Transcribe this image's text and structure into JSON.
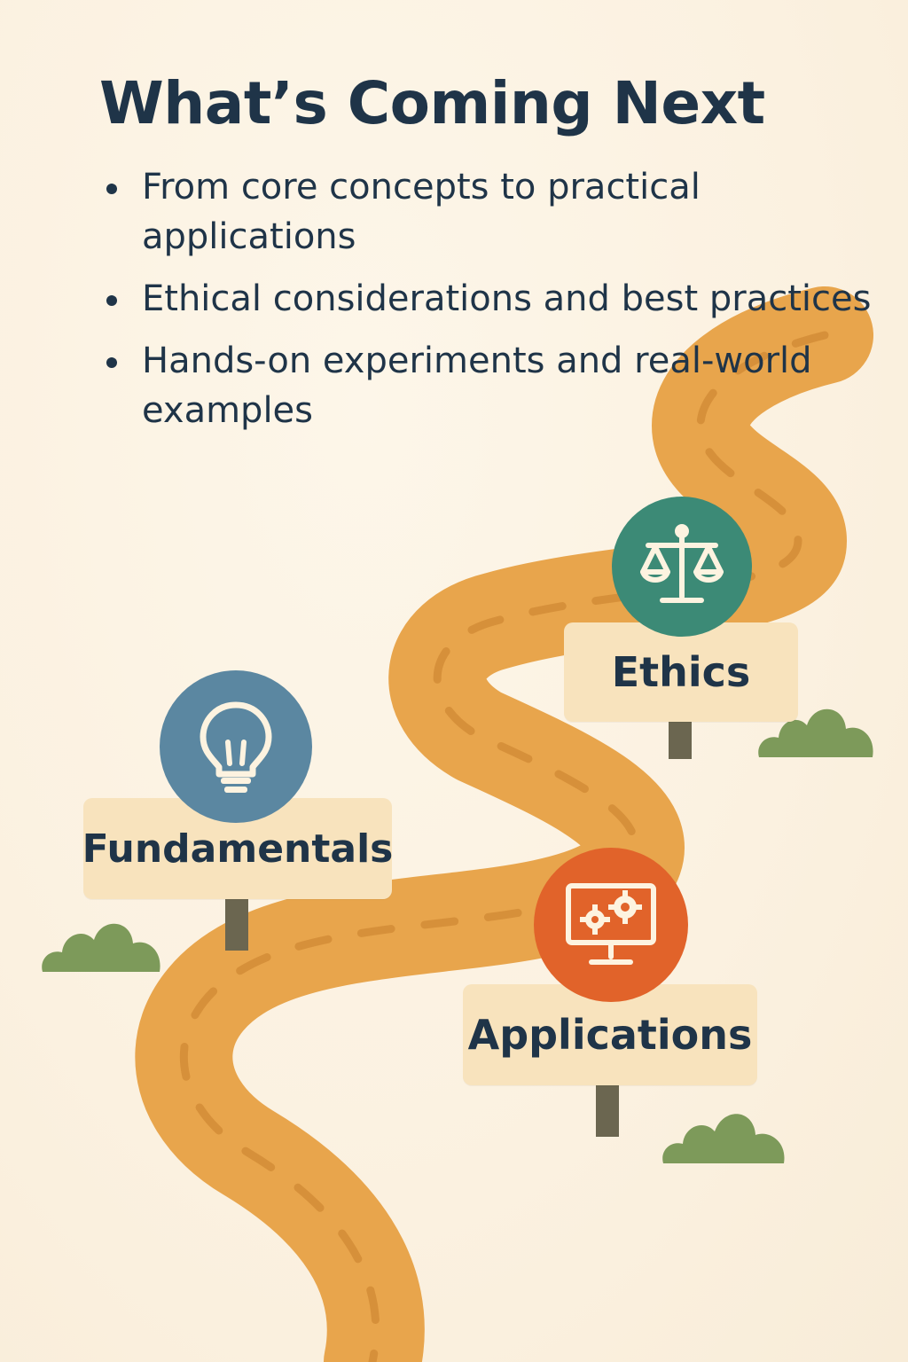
{
  "header": {
    "title": "What’s Coming Next"
  },
  "bullets": [
    "From core concepts to practical applications",
    "Ethical considerations and best practices",
    "Hands-on experiments and real-world examples"
  ],
  "stops": {
    "fundamentals": {
      "label": "Fundamentals",
      "icon": "lightbulb-icon",
      "color": "#5b87a1"
    },
    "ethics": {
      "label": "Ethics",
      "icon": "scales-icon",
      "color": "#3c8a76"
    },
    "applications": {
      "label": "Applications",
      "icon": "monitor-gears-icon",
      "color": "#e1632a"
    }
  },
  "colors": {
    "background": "#fbf2e2",
    "road": "#e8a54c",
    "sign": "#f8e3bd",
    "post": "#6b6650",
    "bush": "#7d9a5a",
    "text": "#1f3448"
  }
}
